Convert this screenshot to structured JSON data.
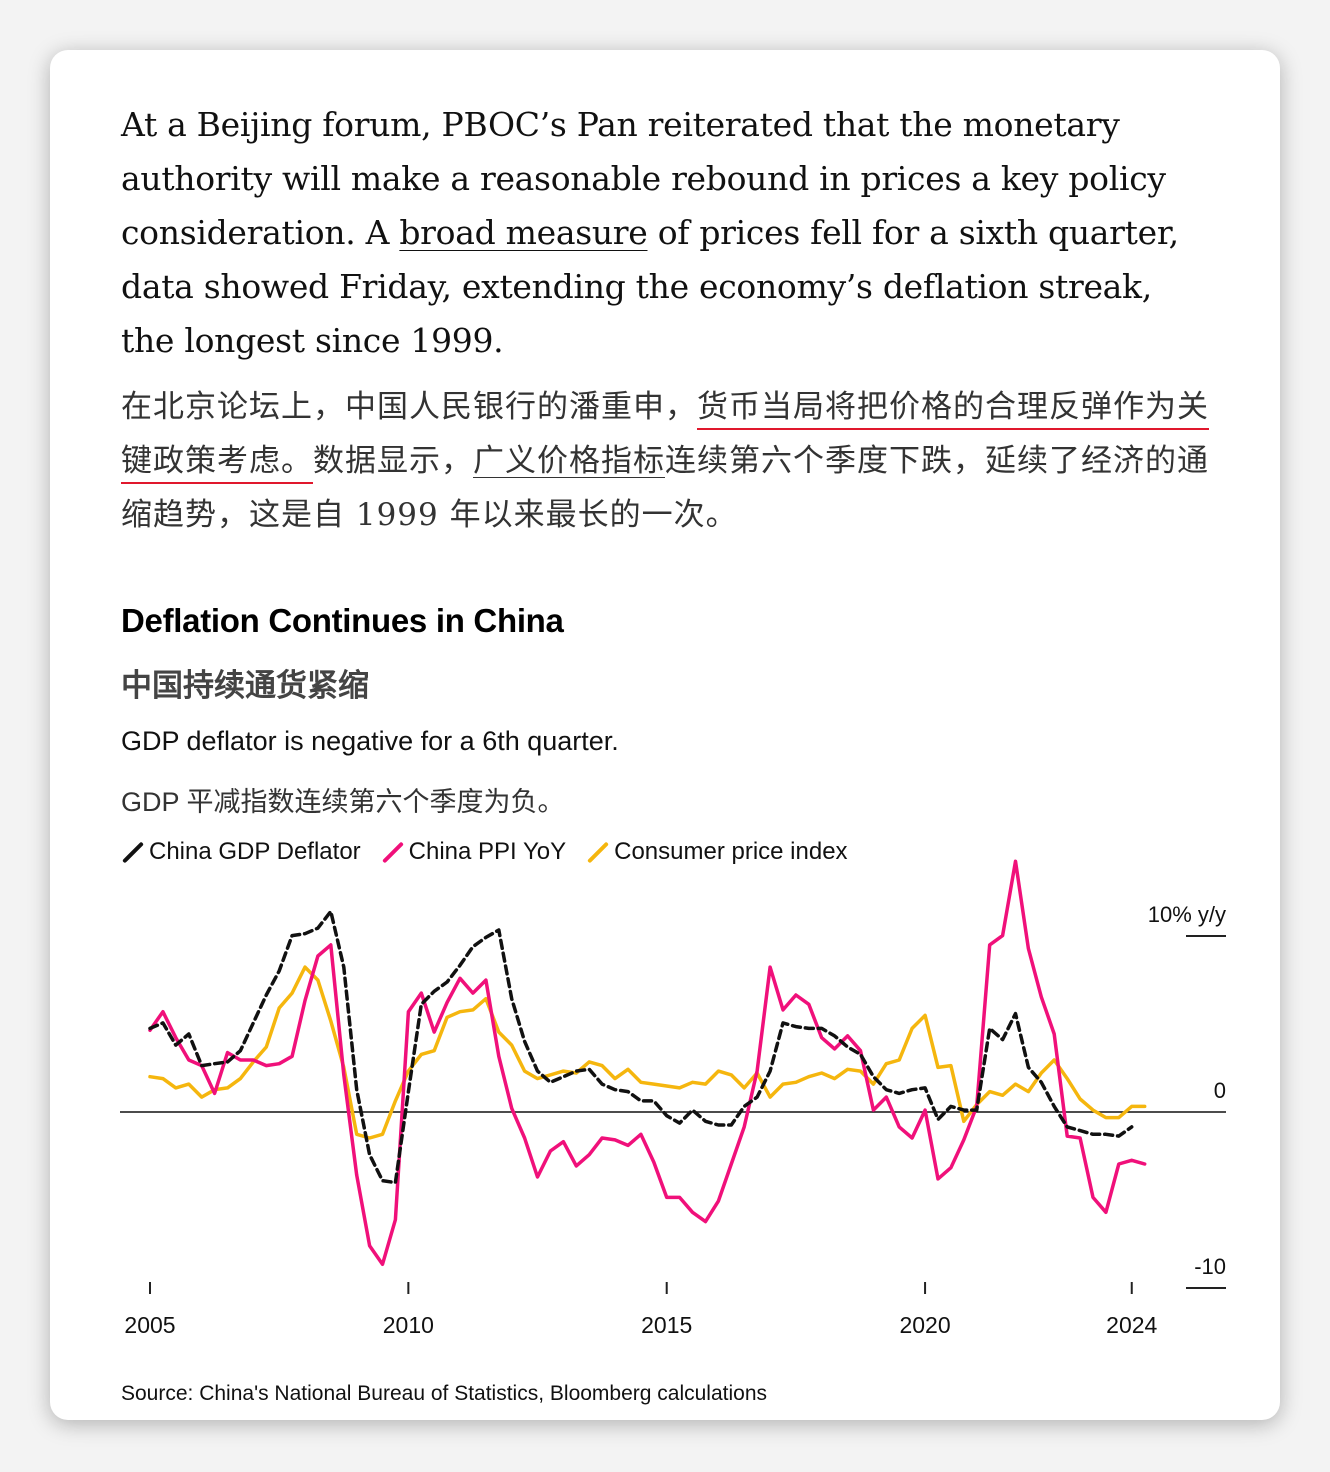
{
  "article": {
    "en_before": "At a Beijing forum, PBOC’s Pan reiterated that the monetary authority will make a reasonable rebound in prices a key policy consideration. A ",
    "en_link": "broad measure",
    "en_after": " of prices fell for a sixth quarter, data showed Friday, extending the economy’s deflation streak, the longest since 1999.",
    "zh_part1": "在北京论坛上，中国人民银行的潘重申，",
    "zh_part2": "货币当局将把价格的合理反弹作为关键政策考虑。",
    "zh_part3": "数据显示，",
    "zh_part4": "广义价格指标",
    "zh_part5": "连续第六个季度下跌，延续了经济的通缩趋势，这是自 1999 年以来最长的一次。"
  },
  "chart_data": {
    "type": "line",
    "title": "Deflation Continues in China",
    "title_zh": "中国持续通货紧缩",
    "subtitle": "GDP deflator is negative for a 6th quarter.",
    "subtitle_zh": "GDP 平减指数连续第六个季度为负。",
    "y_unit_label": "10% y/y",
    "y_tick_labels": [
      "0",
      "-10"
    ],
    "ylim": [
      -10.5,
      10.5
    ],
    "xlim": [
      2005.0,
      2024.45
    ],
    "x_ticks": [
      2005,
      2010,
      2015,
      2020,
      2024
    ],
    "x_tick_labels": [
      "2005",
      "2010",
      "2015",
      "2020",
      "2024"
    ],
    "source": "Source: China's National Bureau of Statistics, Bloomberg calculations",
    "series": [
      {
        "name": "China GDP Deflator",
        "color": "#111111",
        "dash": true,
        "x": [
          2005.0,
          2005.25,
          2005.5,
          2005.75,
          2006.0,
          2006.25,
          2006.5,
          2006.75,
          2007.0,
          2007.25,
          2007.5,
          2007.75,
          2008.0,
          2008.25,
          2008.5,
          2008.75,
          2009.0,
          2009.25,
          2009.5,
          2009.75,
          2010.0,
          2010.25,
          2010.5,
          2010.75,
          2011.0,
          2011.25,
          2011.5,
          2011.75,
          2012.0,
          2012.25,
          2012.5,
          2012.75,
          2013.0,
          2013.25,
          2013.5,
          2013.75,
          2014.0,
          2014.25,
          2014.5,
          2014.75,
          2015.0,
          2015.25,
          2015.5,
          2015.75,
          2016.0,
          2016.25,
          2016.5,
          2016.75,
          2017.0,
          2017.25,
          2017.5,
          2017.75,
          2018.0,
          2018.25,
          2018.5,
          2018.75,
          2019.0,
          2019.25,
          2019.5,
          2019.75,
          2020.0,
          2020.25,
          2020.5,
          2020.75,
          2021.0,
          2021.25,
          2021.5,
          2021.75,
          2022.0,
          2022.25,
          2022.5,
          2022.75,
          2023.0,
          2023.25,
          2023.5,
          2023.75,
          2024.0
        ],
        "values": [
          4.5,
          4.8,
          3.6,
          4.2,
          2.5,
          2.6,
          2.7,
          3.3,
          4.8,
          6.3,
          7.6,
          9.5,
          9.6,
          9.9,
          10.8,
          7.8,
          1.2,
          -2.3,
          -3.7,
          -3.8,
          1.1,
          5.8,
          6.5,
          7.0,
          7.9,
          8.9,
          9.4,
          9.8,
          6.1,
          3.8,
          2.2,
          1.6,
          1.9,
          2.2,
          2.3,
          1.5,
          1.2,
          1.1,
          0.6,
          0.6,
          -0.2,
          -0.6,
          0.1,
          -0.5,
          -0.7,
          -0.7,
          0.3,
          0.8,
          2.2,
          4.8,
          4.6,
          4.5,
          4.5,
          4.1,
          3.5,
          3.1,
          1.9,
          1.2,
          1.0,
          1.2,
          1.3,
          -0.4,
          0.3,
          0.1,
          0.1,
          4.5,
          3.9,
          5.3,
          2.4,
          1.6,
          0.3,
          -0.8,
          -1.0,
          -1.2,
          -1.2,
          -1.3,
          -0.8
        ]
      },
      {
        "name": "China PPI YoY",
        "color": "#f0107a",
        "dash": false,
        "x": [
          2005.0,
          2005.25,
          2005.5,
          2005.75,
          2006.0,
          2006.25,
          2006.5,
          2006.75,
          2007.0,
          2007.25,
          2007.5,
          2007.75,
          2008.0,
          2008.25,
          2008.5,
          2008.75,
          2009.0,
          2009.25,
          2009.5,
          2009.75,
          2010.0,
          2010.25,
          2010.5,
          2010.75,
          2011.0,
          2011.25,
          2011.5,
          2011.75,
          2012.0,
          2012.25,
          2012.5,
          2012.75,
          2013.0,
          2013.25,
          2013.5,
          2013.75,
          2014.0,
          2014.25,
          2014.5,
          2014.75,
          2015.0,
          2015.25,
          2015.5,
          2015.75,
          2016.0,
          2016.25,
          2016.5,
          2016.75,
          2017.0,
          2017.25,
          2017.5,
          2017.75,
          2018.0,
          2018.25,
          2018.5,
          2018.75,
          2019.0,
          2019.25,
          2019.5,
          2019.75,
          2020.0,
          2020.25,
          2020.5,
          2020.75,
          2021.0,
          2021.25,
          2021.5,
          2021.75,
          2022.0,
          2022.25,
          2022.5,
          2022.75,
          2023.0,
          2023.25,
          2023.5,
          2023.75,
          2024.0,
          2024.25
        ],
        "values": [
          4.4,
          5.4,
          4.0,
          2.8,
          2.5,
          1.0,
          3.2,
          2.8,
          2.8,
          2.5,
          2.6,
          3.0,
          6.0,
          8.4,
          9.0,
          2.0,
          -3.4,
          -7.2,
          -8.2,
          -5.8,
          5.4,
          6.4,
          4.3,
          5.9,
          7.2,
          6.4,
          7.1,
          3.0,
          0.2,
          -1.4,
          -3.5,
          -2.1,
          -1.6,
          -2.9,
          -2.3,
          -1.4,
          -1.5,
          -1.8,
          -1.2,
          -2.7,
          -4.6,
          -4.6,
          -5.4,
          -5.9,
          -4.8,
          -2.8,
          -0.8,
          2.2,
          7.8,
          5.5,
          6.3,
          5.8,
          4.0,
          3.4,
          4.1,
          3.3,
          0.1,
          0.8,
          -0.8,
          -1.4,
          0.1,
          -3.6,
          -3.0,
          -1.5,
          0.3,
          9.0,
          9.5,
          13.5,
          8.8,
          6.2,
          4.2,
          -1.3,
          -1.4,
          -4.6,
          -5.4,
          -2.8,
          -2.6,
          -2.8
        ]
      },
      {
        "name": "Consumer price index",
        "color": "#f5b60e",
        "dash": false,
        "x": [
          2005.0,
          2005.25,
          2005.5,
          2005.75,
          2006.0,
          2006.25,
          2006.5,
          2006.75,
          2007.0,
          2007.25,
          2007.5,
          2007.75,
          2008.0,
          2008.25,
          2008.5,
          2008.75,
          2009.0,
          2009.25,
          2009.5,
          2009.75,
          2010.0,
          2010.25,
          2010.5,
          2010.75,
          2011.0,
          2011.25,
          2011.5,
          2011.75,
          2012.0,
          2012.25,
          2012.5,
          2012.75,
          2013.0,
          2013.25,
          2013.5,
          2013.75,
          2014.0,
          2014.25,
          2014.5,
          2014.75,
          2015.0,
          2015.25,
          2015.5,
          2015.75,
          2016.0,
          2016.25,
          2016.5,
          2016.75,
          2017.0,
          2017.25,
          2017.5,
          2017.75,
          2018.0,
          2018.25,
          2018.5,
          2018.75,
          2019.0,
          2019.25,
          2019.5,
          2019.75,
          2020.0,
          2020.25,
          2020.5,
          2020.75,
          2021.0,
          2021.25,
          2021.5,
          2021.75,
          2022.0,
          2022.25,
          2022.5,
          2022.75,
          2023.0,
          2023.25,
          2023.5,
          2023.75,
          2024.0,
          2024.25
        ],
        "values": [
          1.9,
          1.8,
          1.3,
          1.5,
          0.8,
          1.2,
          1.3,
          1.8,
          2.7,
          3.5,
          5.6,
          6.4,
          7.8,
          7.1,
          4.9,
          2.4,
          -1.2,
          -1.4,
          -1.2,
          0.6,
          2.2,
          3.1,
          3.3,
          5.1,
          5.4,
          5.5,
          6.1,
          4.3,
          3.6,
          2.2,
          1.8,
          2.0,
          2.2,
          2.1,
          2.7,
          2.5,
          1.8,
          2.3,
          1.6,
          1.5,
          1.4,
          1.3,
          1.6,
          1.5,
          2.2,
          2.0,
          1.3,
          2.1,
          0.8,
          1.5,
          1.6,
          1.9,
          2.1,
          1.8,
          2.3,
          2.2,
          1.5,
          2.6,
          2.8,
          4.5,
          5.2,
          2.4,
          2.5,
          -0.5,
          0.4,
          1.1,
          0.9,
          1.5,
          1.1,
          2.1,
          2.8,
          1.8,
          0.7,
          0.1,
          -0.3,
          -0.3,
          0.3,
          0.3
        ]
      }
    ]
  }
}
